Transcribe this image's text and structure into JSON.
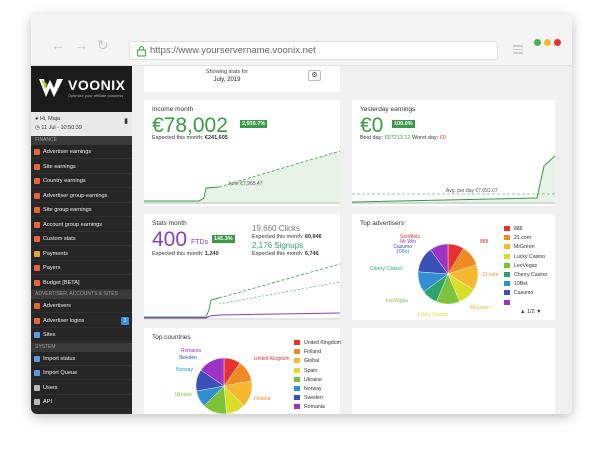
{
  "browser": {
    "url": "https://www.yourservername.voonix.net"
  },
  "brand": {
    "name": "VOONIX",
    "tagline": "Optimize your affiliate business"
  },
  "user": {
    "greeting": "Hi, Maja",
    "datetime": "11 Jul - 10:50:39"
  },
  "sidebar": {
    "sections": {
      "finance": "FINANCE",
      "advertiser": "ADVERTISER, ACCOUNTS & SITES",
      "system": "SYSTEM"
    },
    "finance_items": [
      {
        "label": "Advertiser earnings",
        "color": "#e8643a"
      },
      {
        "label": "Site earnings",
        "color": "#e8643a"
      },
      {
        "label": "Country earnings",
        "color": "#e8643a"
      },
      {
        "label": "Advertiser group-earnings",
        "color": "#e8643a"
      },
      {
        "label": "Site group earnings",
        "color": "#e8643a"
      },
      {
        "label": "Account group earnings",
        "color": "#e8643a"
      },
      {
        "label": "Custom stats",
        "color": "#e8643a"
      },
      {
        "label": "Payments",
        "color": "#e8a23a"
      },
      {
        "label": "Payers",
        "color": "#e8643a"
      },
      {
        "label": "Budget [BETA]",
        "color": "#e8643a"
      }
    ],
    "advertiser_items": [
      {
        "label": "Advertisers",
        "color": "#e8643a"
      },
      {
        "label": "Advertiser logins",
        "color": "#e8643a",
        "badge": "3"
      },
      {
        "label": "Sites",
        "color": "#5a9be0"
      }
    ],
    "system_items": [
      {
        "label": "Import status",
        "color": "#5a9be0"
      },
      {
        "label": "Import Queue",
        "color": "#5a9be0"
      },
      {
        "label": "Users",
        "color": "#bbbbbb"
      },
      {
        "label": "API",
        "color": "#bbbbbb"
      }
    ]
  },
  "period": {
    "label": "Showing stats for",
    "value": "July, 2019"
  },
  "income": {
    "title": "Income month",
    "value": "€78,002",
    "pct": "2,935.7%",
    "expected_label": "Expected this month:",
    "expected_value": "€241,605",
    "annotation": "June €7,965.47"
  },
  "yesterday": {
    "title": "Yesterday earnings",
    "value": "€0",
    "pct": "100.0%",
    "best_label": "Best day:",
    "best_value": "€57213.12",
    "worst_label": "Worst day:",
    "worst_value": "€0",
    "annotation": "Avg. per day €7,091.07"
  },
  "stats": {
    "title": "Stats month",
    "ftd_value": "400",
    "ftd_unit": "FTDs",
    "ftd_pct": "145.3%",
    "ftd_expected_label": "Expected this month:",
    "ftd_expected_value": "1,240",
    "clicks": "19,660 Clicks",
    "clicks_expected_label": "Expected this month:",
    "clicks_expected_value": "60,946",
    "signups": "2,176 Signups",
    "signups_expected_label": "Expected this month:",
    "signups_expected_value": "6,746"
  },
  "top_advertisers": {
    "title": "Top advertisers",
    "pager": "1/2",
    "legend": [
      {
        "label": "888",
        "color": "#e8312f"
      },
      {
        "label": "21.com",
        "color": "#f08a24"
      },
      {
        "label": "MrGreen",
        "color": "#f5b82e"
      },
      {
        "label": "Lucky Casino",
        "color": "#d8de2a"
      },
      {
        "label": "LeoVegas",
        "color": "#7cc23a"
      },
      {
        "label": "Cherry Casino",
        "color": "#2ea46c"
      },
      {
        "label": "10Bet",
        "color": "#2f8fd1"
      },
      {
        "label": "Casumo",
        "color": "#3b4fb8"
      },
      {
        "label": "",
        "color": "#9b34c4"
      }
    ],
    "pie_labels": [
      "SunSlots",
      "Mr Win",
      "Casumo",
      "10Bet",
      "888",
      "21.com",
      "MrGreen",
      "Lucky Casino",
      "LeoVegas",
      "Cherry Casino"
    ]
  },
  "top_countries": {
    "title": "Top countries",
    "legend": [
      {
        "label": "United Kingdom",
        "color": "#e8312f"
      },
      {
        "label": "Finland",
        "color": "#f08a24"
      },
      {
        "label": "Global",
        "color": "#f5b82e"
      },
      {
        "label": "Spain",
        "color": "#d8de2a"
      },
      {
        "label": "Ukraine",
        "color": "#7cc23a"
      },
      {
        "label": "Norway",
        "color": "#2f8fd1"
      },
      {
        "label": "Sweden",
        "color": "#3b4fb8"
      },
      {
        "label": "Romania",
        "color": "#9b34c4"
      }
    ],
    "pie_labels": [
      "Romania",
      "Sweden",
      "Norway",
      "United Kingdom",
      "Ukraine",
      "Finland",
      "Spain",
      "Global"
    ]
  }
}
